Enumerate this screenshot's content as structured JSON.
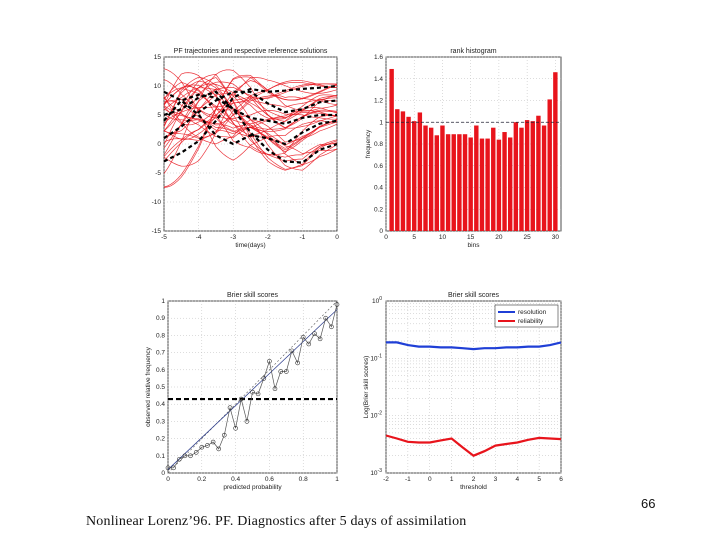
{
  "page_number": "66",
  "caption": "Nonlinear Lorenz’96. PF. Diagnostics after 5 days of assimilation",
  "chart_data": [
    {
      "type": "line",
      "title": "PF trajectories and respective reference solutions",
      "xlabel": "time(days)",
      "ylabel": "",
      "xlim": [
        -5,
        0
      ],
      "ylim": [
        -15,
        15
      ],
      "xticks": [
        -5,
        -4,
        -3,
        -2,
        -1,
        0
      ],
      "yticks": [
        -15,
        -10,
        -5,
        0,
        5,
        10,
        15
      ],
      "ensemble_color": "#e8141c",
      "reference_color": "#000000",
      "reference_series": [
        {
          "x": [
            -5,
            -4.5,
            -4,
            -3.5,
            -3,
            -2.5,
            -2,
            -1.5,
            -1,
            -0.5,
            0
          ],
          "y": [
            -3,
            -1.5,
            0.5,
            4,
            8,
            9.5,
            9,
            9.2,
            9.5,
            9.7,
            10
          ]
        },
        {
          "x": [
            -5,
            -4.5,
            -4,
            -3.5,
            -3,
            -2.5,
            -2,
            -1.5,
            -1,
            -0.5,
            0
          ],
          "y": [
            1,
            3,
            5.5,
            7.5,
            9,
            9,
            7,
            5.5,
            6,
            7.2,
            7.5
          ]
        },
        {
          "x": [
            -5,
            -4.5,
            -4,
            -3.5,
            -3,
            -2.5,
            -2,
            -1.5,
            -1,
            -0.5,
            0
          ],
          "y": [
            4,
            7.5,
            8.5,
            8,
            6,
            4.5,
            4,
            3.5,
            4.5,
            5,
            5
          ]
        },
        {
          "x": [
            -5,
            -4.5,
            -4,
            -3.5,
            -3,
            -2.5,
            -2,
            -1.5,
            -1,
            -0.5,
            0
          ],
          "y": [
            9,
            7.5,
            5,
            1.5,
            0,
            1.5,
            1,
            0,
            2,
            3.5,
            4
          ]
        },
        {
          "x": [
            -5,
            -4.5,
            -4,
            -3.5,
            -3,
            -2.5,
            -2,
            -1.5,
            -1,
            -0.5,
            0
          ],
          "y": [
            5,
            6,
            8,
            9,
            6,
            2,
            -1,
            -3,
            -3.2,
            -1,
            0
          ]
        }
      ]
    },
    {
      "type": "bar",
      "title": "rank histogram",
      "xlabel": "bins",
      "ylabel": "frequency",
      "xlim": [
        0,
        31
      ],
      "ylim": [
        0,
        1.6
      ],
      "xticks": [
        0,
        5,
        10,
        15,
        20,
        25,
        30
      ],
      "yticks": [
        0,
        0.2,
        0.4,
        0.6,
        0.8,
        1,
        1.2,
        1.4,
        1.6
      ],
      "reference_line": 1,
      "bar_color": "#e8141c",
      "categories": [
        1,
        2,
        3,
        4,
        5,
        6,
        7,
        8,
        9,
        10,
        11,
        12,
        13,
        14,
        15,
        16,
        17,
        18,
        19,
        20,
        21,
        22,
        23,
        24,
        25,
        26,
        27,
        28,
        29,
        30
      ],
      "values": [
        1.49,
        1.12,
        1.1,
        1.05,
        1.01,
        1.09,
        0.97,
        0.95,
        0.88,
        0.97,
        0.89,
        0.89,
        0.89,
        0.89,
        0.86,
        0.97,
        0.85,
        0.85,
        0.95,
        0.84,
        0.91,
        0.86,
        1,
        0.95,
        1.02,
        1.01,
        1.06,
        0.97,
        1.21,
        1.46
      ]
    },
    {
      "type": "line",
      "title": "Brier skill scores",
      "xlabel": "predicted probability",
      "ylabel": "observed relative frequency",
      "xlim": [
        0,
        1
      ],
      "ylim": [
        0,
        1
      ],
      "xticks": [
        0,
        0.2,
        0.4,
        0.6,
        0.8,
        1
      ],
      "yticks": [
        0,
        0.1,
        0.2,
        0.3,
        0.4,
        0.5,
        0.6,
        0.7,
        0.8,
        0.9,
        1
      ],
      "climatology": 0.43,
      "series": [
        {
          "x": [
            0.0,
            0.033,
            0.067,
            0.1,
            0.133,
            0.167,
            0.2,
            0.233,
            0.267,
            0.3,
            0.333,
            0.367,
            0.4,
            0.433,
            0.467,
            0.5,
            0.533,
            0.567,
            0.6,
            0.633,
            0.667,
            0.7,
            0.733,
            0.767,
            0.8,
            0.833,
            0.867,
            0.9,
            0.933,
            0.967,
            1.0
          ],
          "y": [
            0.03,
            0.03,
            0.08,
            0.1,
            0.1,
            0.12,
            0.15,
            0.16,
            0.18,
            0.14,
            0.22,
            0.38,
            0.26,
            0.43,
            0.3,
            0.47,
            0.46,
            0.55,
            0.65,
            0.49,
            0.59,
            0.59,
            0.71,
            0.64,
            0.79,
            0.75,
            0.81,
            0.78,
            0.9,
            0.85,
            0.98
          ]
        }
      ],
      "fit": {
        "x": [
          0,
          1
        ],
        "y": [
          0.02,
          0.95
        ]
      }
    },
    {
      "type": "line",
      "title": "Brier skill scores",
      "xlabel": "threshold",
      "ylabel": "Log(Brier skill scores)",
      "xlim": [
        -2,
        6
      ],
      "ylim": [
        0.001,
        1
      ],
      "yscale": "log",
      "xticks": [
        -2,
        -1,
        0,
        1,
        2,
        3,
        4,
        5,
        6
      ],
      "yticks_exponents": [
        -3,
        -2,
        -1,
        0
      ],
      "legend": "top-right",
      "series": [
        {
          "name": "resolution",
          "color": "#1f3fd6",
          "x": [
            -2,
            -1.5,
            -1,
            -0.5,
            0,
            0.5,
            1,
            1.5,
            2,
            2.5,
            3,
            3.5,
            4,
            4.5,
            5,
            5.5,
            6
          ],
          "y": [
            0.19,
            0.19,
            0.17,
            0.16,
            0.16,
            0.155,
            0.155,
            0.15,
            0.145,
            0.15,
            0.15,
            0.155,
            0.155,
            0.16,
            0.16,
            0.17,
            0.19
          ]
        },
        {
          "name": "reliability",
          "color": "#e8141c",
          "x": [
            -2,
            -1.5,
            -1,
            -0.5,
            0,
            0.5,
            1,
            1.5,
            2,
            2.5,
            3,
            3.5,
            4,
            4.5,
            5,
            5.5,
            6
          ],
          "y": [
            0.0045,
            0.004,
            0.0035,
            0.0034,
            0.0034,
            0.0037,
            0.004,
            0.0028,
            0.002,
            0.0024,
            0.003,
            0.0032,
            0.0034,
            0.0038,
            0.0041,
            0.004,
            0.0039
          ]
        }
      ]
    }
  ]
}
